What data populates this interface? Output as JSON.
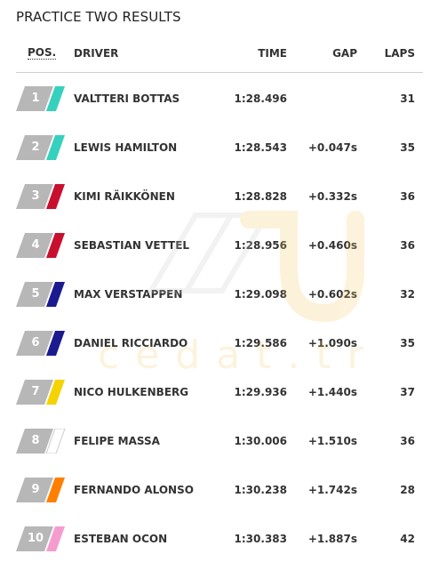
{
  "page": {
    "title": "PRACTICE TWO RESULTS"
  },
  "table": {
    "headers": {
      "pos": "POS.",
      "driver": "DRIVER",
      "time": "TIME",
      "gap": "GAP",
      "laps": "LAPS"
    },
    "rows": [
      {
        "pos": "1",
        "driver": "VALTTERI BOTTAS",
        "time": "1:28.496",
        "gap": "",
        "laps": "31",
        "team_color": "#36d1be"
      },
      {
        "pos": "2",
        "driver": "LEWIS HAMILTON",
        "time": "1:28.543",
        "gap": "+0.047s",
        "laps": "35",
        "team_color": "#36d1be"
      },
      {
        "pos": "3",
        "driver": "KIMI RÄIKKÖNEN",
        "time": "1:28.828",
        "gap": "+0.332s",
        "laps": "36",
        "team_color": "#c8102e"
      },
      {
        "pos": "4",
        "driver": "SEBASTIAN VETTEL",
        "time": "1:28.956",
        "gap": "+0.460s",
        "laps": "36",
        "team_color": "#c8102e"
      },
      {
        "pos": "5",
        "driver": "MAX VERSTAPPEN",
        "time": "1:29.098",
        "gap": "+0.602s",
        "laps": "32",
        "team_color": "#1b1b8f"
      },
      {
        "pos": "6",
        "driver": "DANIEL RICCIARDO",
        "time": "1:29.586",
        "gap": "+1.090s",
        "laps": "35",
        "team_color": "#1b1b8f"
      },
      {
        "pos": "7",
        "driver": "NICO HULKENBERG",
        "time": "1:29.936",
        "gap": "+1.440s",
        "laps": "37",
        "team_color": "#f5d300"
      },
      {
        "pos": "8",
        "driver": "FELIPE MASSA",
        "time": "1:30.006",
        "gap": "+1.510s",
        "laps": "36",
        "team_color": "#ffffff"
      },
      {
        "pos": "9",
        "driver": "FERNANDO ALONSO",
        "time": "1:30.238",
        "gap": "+1.742s",
        "laps": "28",
        "team_color": "#ff8000"
      },
      {
        "pos": "10",
        "driver": "ESTEBAN OCON",
        "time": "1:30.383",
        "gap": "+1.887s",
        "laps": "42",
        "team_color": "#f59ccf"
      }
    ]
  },
  "colors": {
    "badge_gray": "#b7b7b7",
    "divider": "#cfcfcf"
  },
  "watermark": {
    "text": "cedat.tr"
  }
}
